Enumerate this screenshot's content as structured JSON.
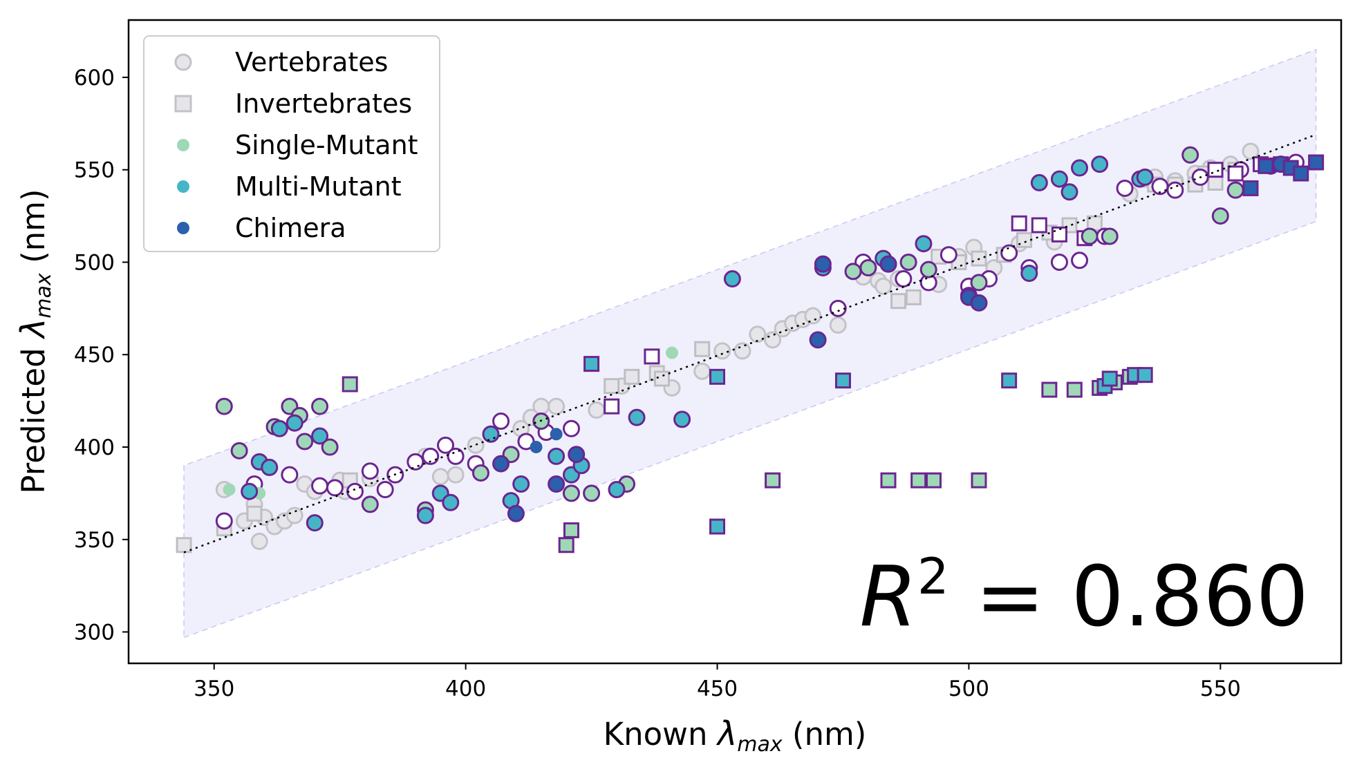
{
  "chart_data": {
    "type": "scatter",
    "title": "",
    "xlabel": "Known λmax (nm)",
    "ylabel": "Predicted λmax (nm)",
    "xlabel_parts": {
      "prefix": "Known ",
      "symbol": "λ",
      "subscript": "max",
      "suffix": " (nm)"
    },
    "ylabel_parts": {
      "prefix": "Predicted ",
      "symbol": "λ",
      "subscript": "max",
      "suffix": " (nm)"
    },
    "xlim": [
      333,
      574
    ],
    "ylim": [
      283,
      631
    ],
    "xticks": [
      350,
      400,
      450,
      500,
      550
    ],
    "yticks": [
      300,
      350,
      400,
      450,
      500,
      550,
      600
    ],
    "grid": false,
    "legend_position": "top-left",
    "annotation": {
      "text_prefix": "R",
      "superscript": "2",
      "text_suffix": " = 0.860",
      "position": "bottom-right"
    },
    "fit_line": {
      "x": [
        344,
        569
      ],
      "y": [
        343,
        569
      ],
      "style": "dotted",
      "color": "#000000"
    },
    "band": {
      "x": [
        344,
        569
      ],
      "upper": [
        390,
        615
      ],
      "lower": [
        297,
        522
      ],
      "color": "#e6e6fa"
    },
    "colors": {
      "vertebrate": "#d3d3d8",
      "vertebrate_edge": "#c2c2c8",
      "invertebrate": "#e6e6ea",
      "invertebrate_edge": "#bdbdc3",
      "single": "#9fd8b6",
      "multi": "#46b5c8",
      "chimera": "#2a60ac",
      "edge_purple": "#6b2590"
    },
    "legend": [
      {
        "label": "Vertebrates",
        "marker": "circle",
        "fill": "#e6e6ea",
        "edge": "#c2c2c8"
      },
      {
        "label": "Invertebrates",
        "marker": "square",
        "fill": "#e6e6ea",
        "edge": "#c2c2c8"
      },
      {
        "label": "Single-Mutant",
        "marker": "dot",
        "fill": "#9fd8b6",
        "edge": "none"
      },
      {
        "label": "Multi-Mutant",
        "marker": "dot",
        "fill": "#46b5c8",
        "edge": "none"
      },
      {
        "label": "Chimera",
        "marker": "dot",
        "fill": "#2a60ac",
        "edge": "none"
      }
    ],
    "series": [
      {
        "marker": "circle",
        "fill": "#e6e6ea",
        "edge": "#c2c2c8",
        "points": [
          [
            352,
            377
          ],
          [
            356,
            360
          ],
          [
            358,
            369
          ],
          [
            359,
            349
          ],
          [
            360,
            362
          ],
          [
            362,
            357
          ],
          [
            364,
            360
          ],
          [
            366,
            363
          ],
          [
            368,
            380
          ],
          [
            370,
            376
          ],
          [
            375,
            382
          ],
          [
            376,
            376
          ],
          [
            381,
            383
          ],
          [
            392,
            395
          ],
          [
            395,
            384
          ],
          [
            398,
            385
          ],
          [
            402,
            401
          ],
          [
            405,
            407
          ],
          [
            411,
            410
          ],
          [
            413,
            416
          ],
          [
            415,
            422
          ],
          [
            418,
            422
          ],
          [
            426,
            420
          ],
          [
            431,
            433
          ],
          [
            441,
            432
          ],
          [
            447,
            441
          ],
          [
            451,
            452
          ],
          [
            455,
            452
          ],
          [
            458,
            461
          ],
          [
            461,
            458
          ],
          [
            463,
            464
          ],
          [
            465,
            467
          ],
          [
            467,
            469
          ],
          [
            469,
            471
          ],
          [
            474,
            466
          ],
          [
            479,
            492
          ],
          [
            482,
            490
          ],
          [
            483,
            487
          ],
          [
            486,
            491
          ],
          [
            494,
            488
          ],
          [
            498,
            503
          ],
          [
            501,
            508
          ],
          [
            505,
            497
          ],
          [
            510,
            510
          ],
          [
            517,
            511
          ],
          [
            532,
            537
          ],
          [
            535,
            545
          ],
          [
            537,
            546
          ],
          [
            541,
            544
          ],
          [
            545,
            548
          ],
          [
            548,
            551
          ],
          [
            552,
            553
          ],
          [
            556,
            560
          ]
        ]
      },
      {
        "marker": "square",
        "fill": "#e6e6ea",
        "edge": "#bdbdc3",
        "points": [
          [
            344,
            347
          ],
          [
            352,
            356
          ],
          [
            358,
            364
          ],
          [
            377,
            382
          ],
          [
            429,
            433
          ],
          [
            433,
            438
          ],
          [
            438,
            440
          ],
          [
            439,
            437
          ],
          [
            447,
            453
          ],
          [
            486,
            479
          ],
          [
            489,
            481
          ],
          [
            494,
            503
          ],
          [
            498,
            500
          ],
          [
            502,
            502
          ],
          [
            507,
            504
          ],
          [
            511,
            512
          ],
          [
            516,
            516
          ],
          [
            520,
            520
          ],
          [
            525,
            521
          ],
          [
            537,
            542
          ],
          [
            541,
            542
          ],
          [
            545,
            542
          ],
          [
            547,
            548
          ],
          [
            549,
            543
          ],
          [
            553,
            550
          ]
        ]
      },
      {
        "marker": "circle",
        "fill": "#ffffff",
        "edge": "#6b2590",
        "points": [
          [
            352,
            360
          ],
          [
            358,
            380
          ],
          [
            365,
            385
          ],
          [
            371,
            379
          ],
          [
            374,
            378
          ],
          [
            378,
            376
          ],
          [
            381,
            387
          ],
          [
            384,
            377
          ],
          [
            386,
            385
          ],
          [
            390,
            392
          ],
          [
            393,
            395
          ],
          [
            396,
            401
          ],
          [
            398,
            395
          ],
          [
            402,
            391
          ],
          [
            407,
            414
          ],
          [
            412,
            403
          ],
          [
            416,
            408
          ],
          [
            421,
            410
          ],
          [
            474,
            475
          ],
          [
            479,
            500
          ],
          [
            487,
            491
          ],
          [
            492,
            489
          ],
          [
            496,
            504
          ],
          [
            500,
            487
          ],
          [
            504,
            491
          ],
          [
            508,
            505
          ],
          [
            512,
            497
          ],
          [
            518,
            500
          ],
          [
            522,
            501
          ],
          [
            527,
            514
          ],
          [
            531,
            540
          ],
          [
            538,
            541
          ],
          [
            541,
            539
          ],
          [
            546,
            546
          ],
          [
            554,
            550
          ],
          [
            560,
            552
          ],
          [
            565,
            554
          ]
        ]
      },
      {
        "marker": "square",
        "fill": "#ffffff",
        "edge": "#6b2590",
        "points": [
          [
            429,
            422
          ],
          [
            437,
            449
          ],
          [
            510,
            521
          ],
          [
            514,
            520
          ],
          [
            518,
            515
          ],
          [
            523,
            513
          ],
          [
            549,
            550
          ],
          [
            553,
            548
          ],
          [
            558,
            553
          ],
          [
            562,
            553
          ]
        ]
      },
      {
        "marker": "circle",
        "fill": "#9fd8b6",
        "edge": "#6b2590",
        "points": [
          [
            352,
            422
          ],
          [
            355,
            398
          ],
          [
            362,
            411
          ],
          [
            365,
            422
          ],
          [
            367,
            417
          ],
          [
            368,
            403
          ],
          [
            371,
            422
          ],
          [
            373,
            400
          ],
          [
            381,
            369
          ],
          [
            392,
            366
          ],
          [
            403,
            386
          ],
          [
            409,
            396
          ],
          [
            415,
            414
          ],
          [
            421,
            375
          ],
          [
            425,
            375
          ],
          [
            432,
            380
          ],
          [
            477,
            495
          ],
          [
            480,
            497
          ],
          [
            484,
            499
          ],
          [
            488,
            500
          ],
          [
            492,
            496
          ],
          [
            502,
            489
          ],
          [
            524,
            514
          ],
          [
            528,
            514
          ],
          [
            544,
            558
          ],
          [
            550,
            525
          ],
          [
            553,
            539
          ]
        ]
      },
      {
        "marker": "circle",
        "fill": "#9fd8b6",
        "edge": "none",
        "points": [
          [
            353,
            377
          ],
          [
            359,
            375
          ],
          [
            441,
            451
          ]
        ]
      },
      {
        "marker": "circle",
        "fill": "#46b5c8",
        "edge": "#6b2590",
        "points": [
          [
            357,
            376
          ],
          [
            359,
            392
          ],
          [
            361,
            389
          ],
          [
            363,
            410
          ],
          [
            366,
            413
          ],
          [
            370,
            359
          ],
          [
            371,
            406
          ],
          [
            392,
            363
          ],
          [
            395,
            375
          ],
          [
            397,
            370
          ],
          [
            405,
            407
          ],
          [
            409,
            371
          ],
          [
            411,
            380
          ],
          [
            418,
            395
          ],
          [
            421,
            385
          ],
          [
            423,
            390
          ],
          [
            430,
            377
          ],
          [
            434,
            416
          ],
          [
            443,
            415
          ],
          [
            453,
            491
          ],
          [
            471,
            497
          ],
          [
            483,
            502
          ],
          [
            491,
            510
          ],
          [
            500,
            482
          ],
          [
            512,
            494
          ],
          [
            514,
            543
          ],
          [
            518,
            545
          ],
          [
            520,
            538
          ],
          [
            522,
            551
          ],
          [
            526,
            553
          ],
          [
            534,
            545
          ],
          [
            535,
            546
          ]
        ]
      },
      {
        "marker": "circle",
        "fill": "#2a60ac",
        "edge": "#6b2590",
        "points": [
          [
            407,
            391
          ],
          [
            410,
            364
          ],
          [
            418,
            380
          ],
          [
            422,
            396
          ],
          [
            470,
            458
          ],
          [
            471,
            499
          ],
          [
            484,
            499
          ],
          [
            500,
            481
          ],
          [
            502,
            478
          ],
          [
            562,
            553
          ]
        ]
      },
      {
        "marker": "circle",
        "fill": "#2a60ac",
        "edge": "none",
        "points": [
          [
            414,
            400
          ],
          [
            418,
            407
          ]
        ]
      },
      {
        "marker": "square",
        "fill": "#9fd8b6",
        "edge": "#6b2590",
        "points": [
          [
            377,
            434
          ],
          [
            420,
            347
          ],
          [
            421,
            355
          ],
          [
            461,
            382
          ],
          [
            484,
            382
          ],
          [
            490,
            382
          ],
          [
            493,
            382
          ],
          [
            502,
            382
          ],
          [
            516,
            431
          ],
          [
            521,
            431
          ],
          [
            526,
            432
          ],
          [
            529,
            435
          ],
          [
            532,
            438
          ]
        ]
      },
      {
        "marker": "square",
        "fill": "#46b5c8",
        "edge": "#6b2590",
        "points": [
          [
            425,
            445
          ],
          [
            450,
            357
          ],
          [
            450,
            438
          ],
          [
            475,
            436
          ],
          [
            508,
            436
          ],
          [
            527,
            433
          ],
          [
            528,
            437
          ],
          [
            533,
            439
          ],
          [
            535,
            439
          ]
        ]
      },
      {
        "marker": "square",
        "fill": "#2a60ac",
        "edge": "#6b2590",
        "points": [
          [
            556,
            540
          ],
          [
            559,
            552
          ],
          [
            564,
            551
          ],
          [
            566,
            548
          ],
          [
            569,
            554
          ]
        ]
      }
    ]
  }
}
